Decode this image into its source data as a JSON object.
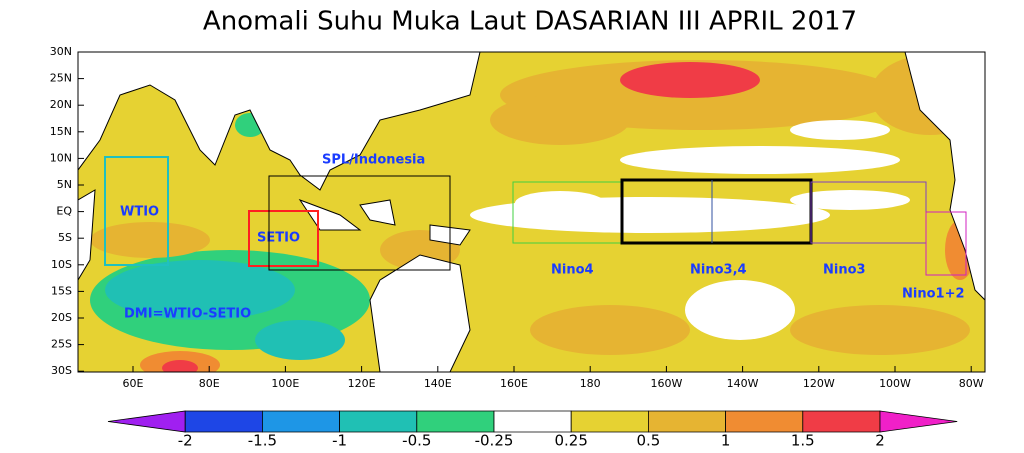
{
  "title": "Anomali Suhu Muka Laut DASARIAN III APRIL 2017",
  "lat_labels": [
    "30N",
    "25N",
    "20N",
    "15N",
    "10N",
    "5N",
    "EQ",
    "5S",
    "10S",
    "15S",
    "20S",
    "25S",
    "30S"
  ],
  "lon_labels": [
    "60E",
    "80E",
    "100E",
    "120E",
    "140E",
    "160E",
    "180",
    "160W",
    "140W",
    "120W",
    "100W",
    "80W"
  ],
  "regions": [
    {
      "label": "WTIO",
      "color": "#20c0c0"
    },
    {
      "label": "SETIO",
      "color": "#ff2020"
    },
    {
      "label": "SPL/Indonesia",
      "color": "#000000"
    },
    {
      "label": "Nino4",
      "color": "#40d040"
    },
    {
      "label": "Nino3,4",
      "color": "#000000"
    },
    {
      "label": "Nino3",
      "color": "#8040c0"
    },
    {
      "label": "Nino1+2",
      "color": "#d020c0"
    },
    {
      "label": "DMI=WTIO-SETIO"
    }
  ],
  "colorbar": {
    "colors": [
      "#a020f0",
      "#1e46e6",
      "#1e96e6",
      "#20c0b4",
      "#30d07c",
      "#ffffff",
      "#e6d232",
      "#e6b432",
      "#f08c32",
      "#f03c46",
      "#f020c8"
    ],
    "ticks": [
      -2,
      -1.5,
      -1,
      -0.5,
      -0.25,
      0.25,
      0.5,
      1,
      1.5,
      2
    ]
  }
}
